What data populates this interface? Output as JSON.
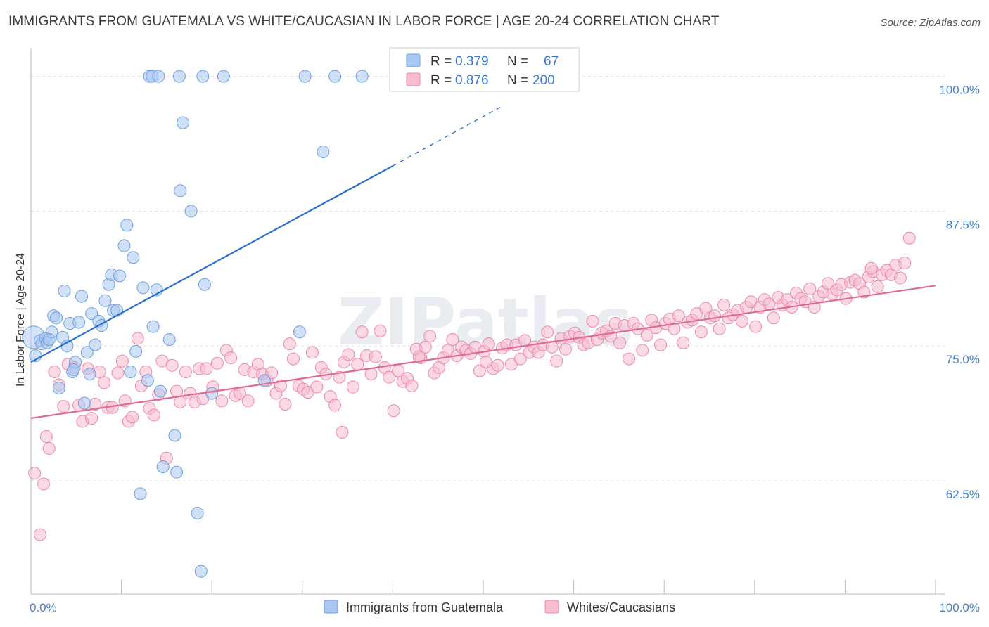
{
  "title": "IMMIGRANTS FROM GUATEMALA VS WHITE/CAUCASIAN IN LABOR FORCE | AGE 20-24 CORRELATION CHART",
  "source": "Source: ZipAtlas.com",
  "watermark": "ZIPatlas",
  "colors": {
    "blue_fill": "#a9c7f0",
    "blue_stroke": "#6f9fe0",
    "blue_line": "#2a6fd0",
    "pink_fill": "#f7bcd0",
    "pink_stroke": "#e98aab",
    "pink_line": "#e06a96",
    "grid": "#dddddd",
    "tick_label": "#4a7fcb"
  },
  "legend": {
    "row1": {
      "r_label": "R = ",
      "r_value": "0.379",
      "n_label": "N = ",
      "n_value": "67"
    },
    "row2": {
      "r_label": "R = ",
      "r_value": "0.876",
      "n_label": "N = ",
      "n_value": "200"
    }
  },
  "chart_data": {
    "type": "scatter",
    "ylabel": "In Labor Force | Age 20-24",
    "x_tick_labels": [
      "0.0%",
      "100.0%"
    ],
    "y_tick_labels": [
      "100.0%",
      "87.5%",
      "75.0%",
      "62.5%"
    ],
    "xlim": [
      0,
      100
    ],
    "ylim": [
      52,
      102
    ],
    "y_ticks": [
      100,
      87.5,
      75,
      62.5
    ],
    "grid": true,
    "legend_position": "top-center",
    "series": [
      {
        "name": "Immigrants from Guatemala",
        "color": "#a9c7f0",
        "trend": {
          "x0": 0,
          "y0": 73.5,
          "x1": 40,
          "y1": 91.7,
          "dashed_to_x": 52,
          "dashed_to_y": 97.2
        },
        "points": [
          [
            0.3,
            75.8
          ],
          [
            0.5,
            74.1
          ],
          [
            1.0,
            75.5
          ],
          [
            1.2,
            75.2
          ],
          [
            1.6,
            75.7
          ],
          [
            1.8,
            75.3
          ],
          [
            2.3,
            76.3
          ],
          [
            2.5,
            77.8
          ],
          [
            2.8,
            77.6
          ],
          [
            3.1,
            71.1
          ],
          [
            3.5,
            75.8
          ],
          [
            3.7,
            80.1
          ],
          [
            4.0,
            75.0
          ],
          [
            4.3,
            77.1
          ],
          [
            4.6,
            72.6
          ],
          [
            4.9,
            73.5
          ],
          [
            5.3,
            77.2
          ],
          [
            5.6,
            79.6
          ],
          [
            5.9,
            69.7
          ],
          [
            6.2,
            74.4
          ],
          [
            6.5,
            72.4
          ],
          [
            6.7,
            78.0
          ],
          [
            7.1,
            75.1
          ],
          [
            7.5,
            77.3
          ],
          [
            7.8,
            76.9
          ],
          [
            8.2,
            79.2
          ],
          [
            8.6,
            80.7
          ],
          [
            8.9,
            81.6
          ],
          [
            9.1,
            78.3
          ],
          [
            9.5,
            78.3
          ],
          [
            9.8,
            81.5
          ],
          [
            10.3,
            84.3
          ],
          [
            10.6,
            86.2
          ],
          [
            11.0,
            72.6
          ],
          [
            11.3,
            83.2
          ],
          [
            11.6,
            74.5
          ],
          [
            12.1,
            61.3
          ],
          [
            12.4,
            80.4
          ],
          [
            12.9,
            71.8
          ],
          [
            13.5,
            76.8
          ],
          [
            13.9,
            80.2
          ],
          [
            14.3,
            70.8
          ],
          [
            14.6,
            63.8
          ],
          [
            15.3,
            75.6
          ],
          [
            15.9,
            66.7
          ],
          [
            16.1,
            63.3
          ],
          [
            16.5,
            89.4
          ],
          [
            17.7,
            87.5
          ],
          [
            18.4,
            59.5
          ],
          [
            19.2,
            80.7
          ],
          [
            20.0,
            70.6
          ],
          [
            25.8,
            71.8
          ],
          [
            29.7,
            76.3
          ],
          [
            13.1,
            100
          ],
          [
            13.4,
            100
          ],
          [
            14.1,
            100
          ],
          [
            16.4,
            100
          ],
          [
            19.0,
            100
          ],
          [
            21.3,
            100
          ],
          [
            30.3,
            100
          ],
          [
            33.6,
            100
          ],
          [
            36.6,
            100
          ],
          [
            16.8,
            95.7
          ],
          [
            32.3,
            93.0
          ],
          [
            18.8,
            54.1
          ],
          [
            4.7,
            72.8
          ],
          [
            2.0,
            75.6
          ]
        ]
      },
      {
        "name": "Whites/Caucasians",
        "color": "#f7bcd0",
        "trend": {
          "x0": 0,
          "y0": 68.3,
          "x1": 100,
          "y1": 80.6
        },
        "points": [
          [
            0.4,
            63.2
          ],
          [
            1.0,
            57.5
          ],
          [
            1.4,
            62.2
          ],
          [
            1.7,
            66.6
          ],
          [
            2.0,
            65.5
          ],
          [
            2.6,
            72.6
          ],
          [
            3.1,
            71.4
          ],
          [
            3.6,
            69.4
          ],
          [
            4.1,
            73.3
          ],
          [
            4.8,
            73.0
          ],
          [
            5.3,
            69.5
          ],
          [
            5.7,
            68.0
          ],
          [
            6.3,
            72.9
          ],
          [
            6.7,
            68.3
          ],
          [
            7.1,
            69.6
          ],
          [
            7.6,
            72.6
          ],
          [
            8.1,
            71.6
          ],
          [
            8.5,
            69.3
          ],
          [
            9.0,
            69.3
          ],
          [
            9.6,
            72.5
          ],
          [
            10.1,
            73.6
          ],
          [
            10.4,
            69.9
          ],
          [
            10.8,
            68.0
          ],
          [
            11.2,
            68.4
          ],
          [
            11.8,
            75.7
          ],
          [
            12.2,
            71.3
          ],
          [
            12.7,
            72.6
          ],
          [
            13.1,
            69.2
          ],
          [
            13.6,
            68.6
          ],
          [
            14.1,
            70.5
          ],
          [
            14.5,
            73.6
          ],
          [
            15.0,
            64.6
          ],
          [
            15.6,
            73.2
          ],
          [
            16.1,
            70.8
          ],
          [
            16.5,
            69.8
          ],
          [
            17.1,
            72.6
          ],
          [
            17.6,
            70.6
          ],
          [
            18.1,
            69.8
          ],
          [
            18.6,
            72.9
          ],
          [
            19.0,
            70.1
          ],
          [
            19.4,
            72.9
          ],
          [
            20.1,
            71.2
          ],
          [
            20.6,
            73.4
          ],
          [
            21.1,
            69.9
          ],
          [
            21.6,
            74.6
          ],
          [
            22.1,
            73.9
          ],
          [
            22.6,
            70.4
          ],
          [
            23.1,
            70.6
          ],
          [
            23.6,
            72.8
          ],
          [
            24.0,
            69.9
          ],
          [
            24.6,
            72.6
          ],
          [
            25.1,
            73.3
          ],
          [
            25.6,
            72.4
          ],
          [
            26.1,
            71.8
          ],
          [
            26.6,
            72.5
          ],
          [
            27.1,
            70.6
          ],
          [
            27.6,
            71.3
          ],
          [
            28.1,
            69.6
          ],
          [
            28.6,
            75.2
          ],
          [
            29.0,
            73.8
          ],
          [
            29.6,
            71.3
          ],
          [
            30.1,
            71.0
          ],
          [
            30.6,
            70.7
          ],
          [
            31.1,
            74.4
          ],
          [
            31.6,
            71.2
          ],
          [
            32.1,
            73.0
          ],
          [
            32.6,
            72.4
          ],
          [
            33.1,
            70.3
          ],
          [
            33.6,
            69.5
          ],
          [
            34.1,
            72.1
          ],
          [
            34.6,
            73.5
          ],
          [
            35.1,
            74.2
          ],
          [
            35.6,
            71.2
          ],
          [
            36.1,
            73.3
          ],
          [
            36.6,
            76.3
          ],
          [
            37.1,
            74.1
          ],
          [
            37.6,
            72.4
          ],
          [
            38.1,
            74.0
          ],
          [
            38.6,
            76.4
          ],
          [
            39.1,
            73.0
          ],
          [
            39.6,
            72.1
          ],
          [
            40.1,
            69.0
          ],
          [
            40.6,
            72.7
          ],
          [
            41.1,
            71.7
          ],
          [
            41.6,
            72.0
          ],
          [
            42.1,
            71.3
          ],
          [
            42.6,
            74.7
          ],
          [
            43.1,
            73.9
          ],
          [
            43.6,
            74.9
          ],
          [
            44.1,
            75.9
          ],
          [
            44.6,
            72.5
          ],
          [
            45.1,
            73.0
          ],
          [
            45.6,
            73.9
          ],
          [
            46.1,
            74.6
          ],
          [
            46.6,
            75.6
          ],
          [
            47.1,
            74.1
          ],
          [
            47.6,
            74.9
          ],
          [
            48.1,
            74.6
          ],
          [
            48.6,
            74.3
          ],
          [
            49.1,
            74.9
          ],
          [
            49.6,
            72.7
          ],
          [
            50.1,
            74.5
          ],
          [
            50.6,
            75.2
          ],
          [
            51.1,
            72.9
          ],
          [
            51.6,
            73.2
          ],
          [
            52.1,
            74.8
          ],
          [
            52.6,
            75.1
          ],
          [
            53.1,
            73.3
          ],
          [
            53.6,
            75.1
          ],
          [
            54.1,
            73.8
          ],
          [
            54.6,
            75.5
          ],
          [
            55.1,
            74.4
          ],
          [
            55.6,
            74.9
          ],
          [
            56.1,
            74.4
          ],
          [
            56.6,
            75.1
          ],
          [
            57.1,
            76.3
          ],
          [
            57.6,
            74.9
          ],
          [
            58.1,
            73.6
          ],
          [
            58.6,
            75.7
          ],
          [
            59.1,
            74.7
          ],
          [
            59.6,
            75.9
          ],
          [
            60.1,
            76.2
          ],
          [
            60.6,
            75.8
          ],
          [
            61.1,
            75.1
          ],
          [
            61.6,
            75.3
          ],
          [
            62.1,
            77.3
          ],
          [
            62.6,
            75.6
          ],
          [
            63.1,
            76.2
          ],
          [
            63.6,
            76.4
          ],
          [
            64.1,
            75.9
          ],
          [
            64.6,
            77.1
          ],
          [
            65.1,
            75.3
          ],
          [
            65.6,
            76.9
          ],
          [
            66.1,
            73.8
          ],
          [
            66.6,
            77.1
          ],
          [
            67.1,
            76.6
          ],
          [
            67.6,
            74.6
          ],
          [
            68.1,
            76.0
          ],
          [
            68.6,
            77.4
          ],
          [
            69.1,
            76.7
          ],
          [
            69.6,
            75.1
          ],
          [
            70.1,
            77.1
          ],
          [
            70.6,
            77.5
          ],
          [
            71.1,
            76.6
          ],
          [
            71.6,
            77.8
          ],
          [
            72.1,
            75.3
          ],
          [
            72.6,
            77.2
          ],
          [
            73.1,
            77.4
          ],
          [
            73.6,
            78.0
          ],
          [
            74.1,
            76.3
          ],
          [
            74.6,
            78.5
          ],
          [
            75.1,
            77.6
          ],
          [
            75.6,
            77.8
          ],
          [
            76.1,
            76.6
          ],
          [
            76.6,
            78.8
          ],
          [
            77.1,
            77.6
          ],
          [
            77.6,
            77.9
          ],
          [
            78.1,
            78.3
          ],
          [
            78.6,
            77.3
          ],
          [
            79.1,
            78.6
          ],
          [
            79.6,
            79.1
          ],
          [
            80.1,
            76.8
          ],
          [
            80.6,
            78.6
          ],
          [
            81.1,
            79.3
          ],
          [
            81.6,
            78.9
          ],
          [
            82.1,
            77.6
          ],
          [
            82.6,
            79.5
          ],
          [
            83.1,
            78.8
          ],
          [
            83.6,
            79.3
          ],
          [
            84.1,
            78.6
          ],
          [
            84.6,
            79.9
          ],
          [
            85.1,
            79.4
          ],
          [
            85.6,
            79.1
          ],
          [
            86.1,
            80.3
          ],
          [
            86.6,
            78.6
          ],
          [
            87.1,
            79.6
          ],
          [
            87.6,
            80.0
          ],
          [
            88.1,
            80.8
          ],
          [
            88.6,
            79.8
          ],
          [
            89.1,
            80.2
          ],
          [
            89.6,
            80.7
          ],
          [
            90.1,
            79.4
          ],
          [
            90.6,
            80.9
          ],
          [
            91.1,
            81.1
          ],
          [
            91.6,
            80.8
          ],
          [
            92.1,
            80.0
          ],
          [
            92.6,
            81.4
          ],
          [
            93.1,
            81.9
          ],
          [
            93.6,
            80.5
          ],
          [
            94.1,
            81.6
          ],
          [
            94.6,
            82.0
          ],
          [
            95.1,
            81.6
          ],
          [
            95.6,
            82.5
          ],
          [
            96.1,
            81.3
          ],
          [
            96.6,
            82.7
          ],
          [
            97.1,
            85.0
          ],
          [
            34.4,
            67.0
          ],
          [
            42.9,
            74.0
          ],
          [
            50.3,
            73.5
          ],
          [
            92.9,
            82.2
          ]
        ]
      }
    ]
  }
}
